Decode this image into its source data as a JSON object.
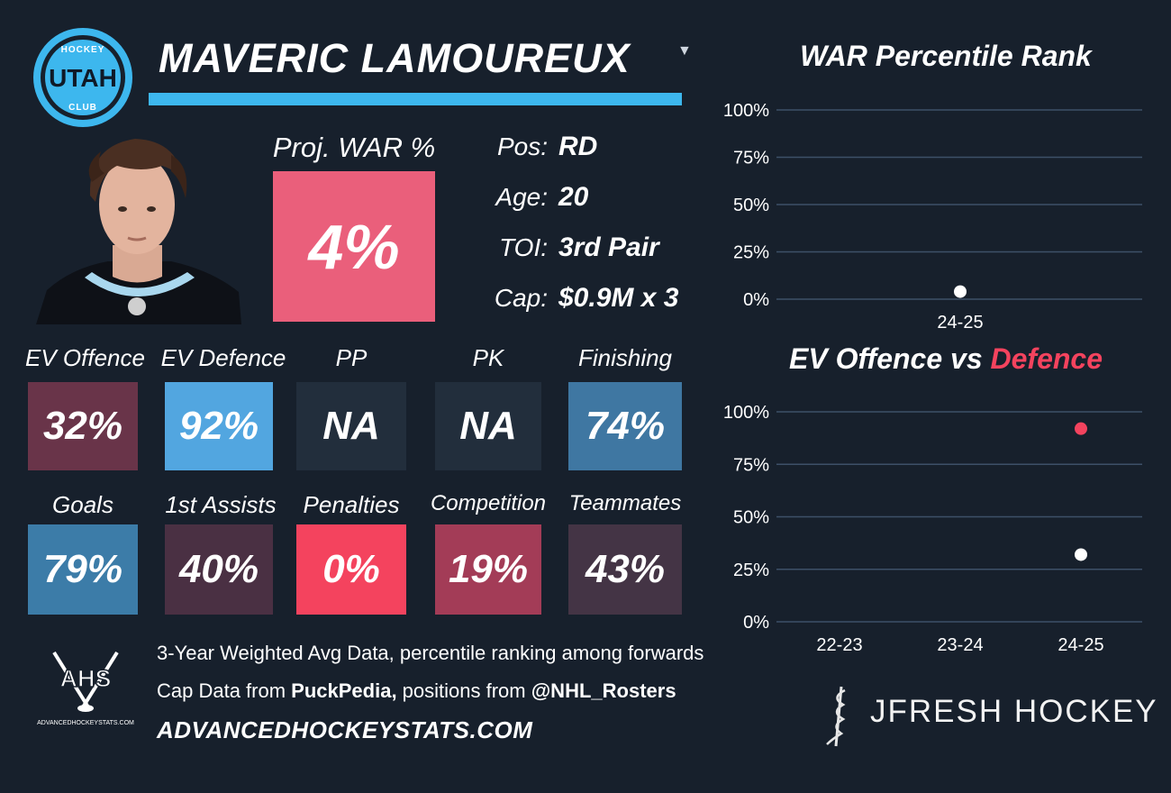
{
  "team": {
    "logo_top": "HOCKEY",
    "logo_main": "UTAH",
    "logo_bottom": "CLUB",
    "logo_color": "#3db7ee"
  },
  "player": {
    "name": "MAVERIC LAMOUREUX",
    "dropdown_icon": "caret-down"
  },
  "proj_war": {
    "label": "Proj. WAR %",
    "value": "4%",
    "color": "#ea5f7b"
  },
  "info": [
    {
      "label": "Pos:",
      "value": "RD"
    },
    {
      "label": "Age:",
      "value": "20"
    },
    {
      "label": "TOI:",
      "value": "3rd Pair"
    },
    {
      "label": "Cap:",
      "value": "$0.9M x 3"
    }
  ],
  "metrics_row1": [
    {
      "label": "EV Offence",
      "value": "32%",
      "color": "#693449"
    },
    {
      "label": "EV Defence",
      "value": "92%",
      "color": "#52a6e0"
    },
    {
      "label": "PP",
      "value": "NA",
      "color": "#222e3c"
    },
    {
      "label": "PK",
      "value": "NA",
      "color": "#222e3c"
    },
    {
      "label": "Finishing",
      "value": "74%",
      "color": "#3f77a2"
    }
  ],
  "metrics_row2": [
    {
      "label": "Goals",
      "value": "79%",
      "color": "#3c7ca8"
    },
    {
      "label": "1st Assists",
      "value": "40%",
      "color": "#4a3043"
    },
    {
      "label": "Penalties",
      "value": "0%",
      "color": "#f4435e"
    },
    {
      "label": "Competition",
      "value": "19%",
      "color": "#a33c57"
    },
    {
      "label": "Teammates",
      "value": "43%",
      "color": "#443445"
    }
  ],
  "footer": {
    "ahs_logo_text": "AHS",
    "ahs_logo_sub": "ADVANCEDHOCKEYSTATS.COM",
    "line1": "3-Year Weighted Avg Data, percentile ranking among forwards",
    "line2_prefix": "Cap Data from ",
    "line2_bold1": "PuckPedia,",
    "line2_mid": " positions from ",
    "line2_bold2": "@NHL_Rosters",
    "site": "ADVANCEDHOCKEYSTATS.COM",
    "brand": "JFRESH HOCKEY"
  },
  "chart_data": [
    {
      "type": "scatter",
      "title": "WAR Percentile Rank",
      "xlabel": "",
      "ylabel": "",
      "categories": [
        "24-25"
      ],
      "ylim": [
        0,
        100
      ],
      "yticks": [
        "0%",
        "25%",
        "50%",
        "75%",
        "100%"
      ],
      "grid": true,
      "series": [
        {
          "values": [
            4
          ],
          "color": "#ffffff"
        }
      ]
    },
    {
      "type": "scatter",
      "title": "EV Offence vs Defence",
      "title_parts": [
        "EV Offence vs ",
        "Defence"
      ],
      "xlabel": "",
      "ylabel": "",
      "categories": [
        "22-23",
        "23-24",
        "24-25"
      ],
      "ylim": [
        0,
        100
      ],
      "yticks": [
        "0%",
        "25%",
        "50%",
        "75%",
        "100%"
      ],
      "grid": true,
      "series": [
        {
          "values": [
            null,
            null,
            32
          ],
          "color": "#ffffff"
        },
        {
          "values": [
            null,
            null,
            92
          ],
          "color": "#f4435e"
        }
      ]
    }
  ]
}
